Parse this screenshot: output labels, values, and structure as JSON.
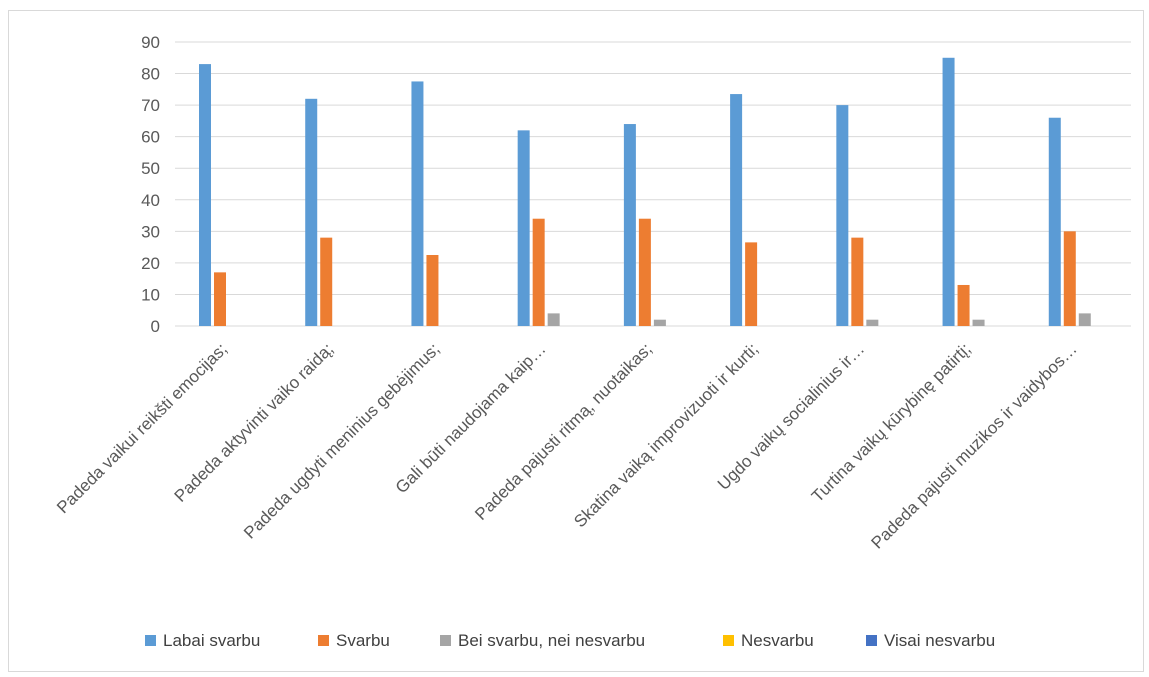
{
  "chart_data": {
    "type": "bar",
    "categories": [
      "Padeda vaikui reikšti emocijas;",
      "Padeda aktyvinti vaiko raidą;",
      "Padeda ugdyti meninius gebėjimus;",
      "Gali būti naudojama kaip…",
      "Padeda pajusti ritmą, nuotaikas;",
      "Skatina vaiką improvizuoti ir kurti;",
      "Ugdo vaikų socialinius ir…",
      "Turtina vaikų kūrybinę patirtį;",
      "Padeda pajusti muzikos ir vaidybos…"
    ],
    "series": [
      {
        "name": "Labai svarbu",
        "color": "#5b9bd5",
        "values": [
          83,
          72,
          77.5,
          62,
          64,
          73.5,
          70,
          85,
          66
        ]
      },
      {
        "name": "Svarbu",
        "color": "#ed7d31",
        "values": [
          17,
          28,
          22.5,
          34,
          34,
          26.5,
          28,
          13,
          30
        ]
      },
      {
        "name": "Bei svarbu, nei nesvarbu",
        "color": "#a5a5a5",
        "values": [
          0,
          0,
          0,
          4,
          2,
          0,
          2,
          2,
          4
        ]
      },
      {
        "name": "Nesvarbu",
        "color": "#ffc000",
        "values": [
          0,
          0,
          0,
          0,
          0,
          0,
          0,
          0,
          0
        ]
      },
      {
        "name": "Visai nesvarbu",
        "color": "#4472c4",
        "values": [
          0,
          0,
          0,
          0,
          0,
          0,
          0,
          0,
          0
        ]
      }
    ],
    "ylim": [
      0,
      90
    ],
    "yticks": [
      0,
      10,
      20,
      30,
      40,
      50,
      60,
      70,
      80,
      90
    ],
    "grid": true,
    "legend_position": "bottom",
    "gridline_color": "#d9d9d9",
    "label_color": "#595959"
  }
}
